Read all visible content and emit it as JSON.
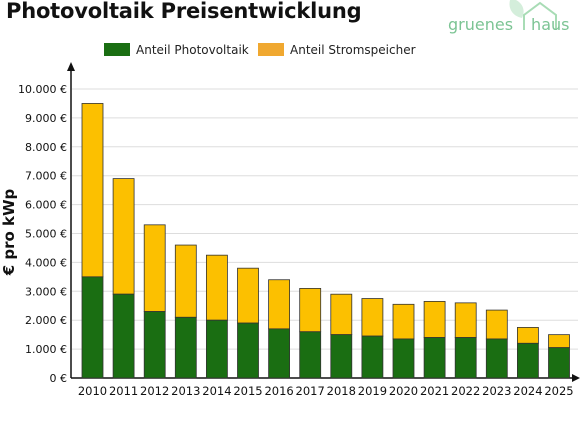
{
  "title": "Photovoltaik Preisentwicklung",
  "logo": {
    "word1": "gruenes",
    "word2": "haus"
  },
  "colors": {
    "pv": "#1a6e12",
    "storage": "#fcc000",
    "legend_storage": "#f0a830"
  },
  "chart_data": {
    "type": "bar",
    "stacked": true,
    "categories": [
      "2010",
      "2011",
      "2012",
      "2013",
      "2014",
      "2015",
      "2016",
      "2017",
      "2018",
      "2019",
      "2020",
      "2021",
      "2022",
      "2023",
      "2024",
      "2025"
    ],
    "series": [
      {
        "name": "Anteil Photovoltaik",
        "values": [
          3500,
          2900,
          2300,
          2100,
          2000,
          1900,
          1700,
          1600,
          1500,
          1450,
          1350,
          1400,
          1400,
          1350,
          1200,
          1050
        ]
      },
      {
        "name": "Anteil Stromspeicher",
        "values": [
          6000,
          4000,
          3000,
          2500,
          2250,
          1900,
          1700,
          1500,
          1400,
          1300,
          1200,
          1250,
          1200,
          1000,
          550,
          450
        ]
      }
    ],
    "ylabel": "€ pro kWp",
    "ylim": [
      0,
      10000
    ],
    "yticks": [
      "0 €",
      "1.000 €",
      "2.000 €",
      "3.000 €",
      "4.000 €",
      "5.000 €",
      "6.000 €",
      "7.000 €",
      "8.000 €",
      "9.000 €",
      "10.000 €"
    ],
    "legend": "top",
    "grid": true
  }
}
